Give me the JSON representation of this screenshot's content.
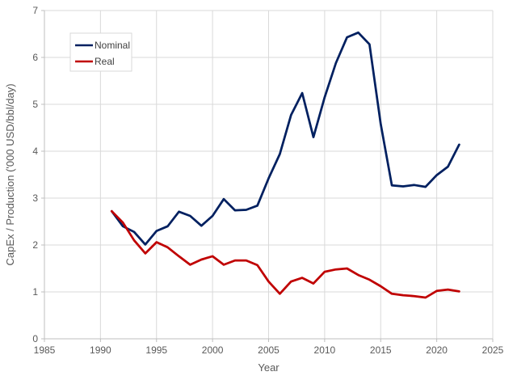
{
  "chart_data": {
    "type": "line",
    "title": "",
    "xlabel": "Year",
    "ylabel": "CapEx / Production ('000 USD/bbl/day)",
    "xlim": [
      1985,
      2025
    ],
    "ylim": [
      0,
      7
    ],
    "x_ticks": [
      "1985",
      "1990",
      "1995",
      "2000",
      "2005",
      "2010",
      "2015",
      "2020",
      "2025"
    ],
    "y_ticks": [
      "0",
      "1",
      "2",
      "3",
      "4",
      "5",
      "6",
      "7"
    ],
    "grid": true,
    "legend_position": "top-left",
    "x": [
      1991,
      1992,
      1993,
      1994,
      1995,
      1996,
      1997,
      1998,
      1999,
      2000,
      2001,
      2002,
      2003,
      2004,
      2005,
      2006,
      2007,
      2008,
      2009,
      2010,
      2011,
      2012,
      2013,
      2014,
      2015,
      2016,
      2017,
      2018,
      2019,
      2020,
      2021,
      2022
    ],
    "series": [
      {
        "name": "Nominal",
        "color": "#002060",
        "values": [
          2.72,
          2.4,
          2.28,
          2.01,
          2.3,
          2.4,
          2.71,
          2.62,
          2.41,
          2.62,
          2.98,
          2.74,
          2.75,
          2.84,
          3.42,
          3.94,
          4.77,
          5.24,
          4.3,
          5.15,
          5.88,
          6.43,
          6.53,
          6.28,
          4.58,
          3.27,
          3.25,
          3.28,
          3.24,
          3.49,
          3.67,
          4.14
        ]
      },
      {
        "name": "Real",
        "color": "#C00000",
        "values": [
          2.72,
          2.48,
          2.1,
          1.82,
          2.06,
          1.95,
          1.76,
          1.58,
          1.69,
          1.76,
          1.58,
          1.67,
          1.67,
          1.57,
          1.22,
          0.96,
          1.22,
          1.3,
          1.18,
          1.43,
          1.48,
          1.5,
          1.36,
          1.26,
          1.12,
          0.96,
          0.93,
          0.91,
          0.88,
          1.02,
          1.05,
          1.01
        ]
      }
    ]
  }
}
